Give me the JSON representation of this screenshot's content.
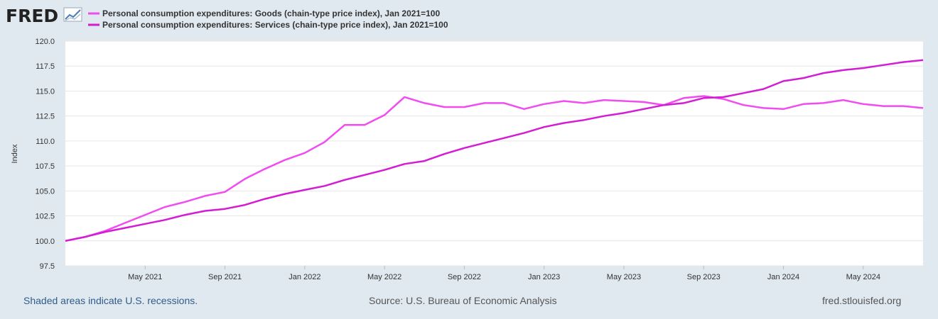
{
  "header": {
    "logo_text": "FRED"
  },
  "chart_data": {
    "type": "line",
    "title": "",
    "xlabel": "",
    "ylabel": "Index",
    "ylim": [
      97.5,
      120.0
    ],
    "y_ticks": [
      "120.0",
      "117.5",
      "115.0",
      "112.5",
      "110.0",
      "107.5",
      "105.0",
      "102.5",
      "100.0",
      "97.5"
    ],
    "x_tick_labels": [
      "May 2021",
      "Sep 2021",
      "Jan 2022",
      "May 2022",
      "Sep 2022",
      "Jan 2023",
      "May 2023",
      "Sep 2023",
      "Jan 2024",
      "May 2024"
    ],
    "x_tick_month_index": [
      4,
      8,
      12,
      16,
      20,
      24,
      28,
      32,
      36,
      40
    ],
    "x_range_months": [
      0,
      43
    ],
    "series": [
      {
        "name": "Personal consumption expenditures: Goods (chain-type price index), Jan 2021=100",
        "color": "#f04cf0",
        "values": [
          100.0,
          100.4,
          101.0,
          101.8,
          102.6,
          103.4,
          103.9,
          104.5,
          104.9,
          106.2,
          107.2,
          108.1,
          108.8,
          109.9,
          111.6,
          111.6,
          112.6,
          114.4,
          113.8,
          113.4,
          113.4,
          113.8,
          113.8,
          113.2,
          113.7,
          114.0,
          113.8,
          114.1,
          114.0,
          113.9,
          113.6,
          114.3,
          114.5,
          114.2,
          113.6,
          113.3,
          113.2,
          113.7,
          113.8,
          114.1,
          113.7,
          113.5,
          113.5,
          113.3
        ]
      },
      {
        "name": "Personal consumption expenditures: Services (chain-type price index), Jan 2021=100",
        "color": "#d41cd4",
        "values": [
          100.0,
          100.4,
          100.9,
          101.3,
          101.7,
          102.1,
          102.6,
          103.0,
          103.2,
          103.6,
          104.2,
          104.7,
          105.1,
          105.5,
          106.1,
          106.6,
          107.1,
          107.7,
          108.0,
          108.7,
          109.3,
          109.8,
          110.3,
          110.8,
          111.4,
          111.8,
          112.1,
          112.5,
          112.8,
          113.2,
          113.6,
          113.8,
          114.3,
          114.4,
          114.8,
          115.2,
          116.0,
          116.3,
          116.8,
          117.1,
          117.3,
          117.6,
          117.9,
          118.1
        ]
      }
    ]
  },
  "footer": {
    "note": "Shaded areas indicate U.S. recessions.",
    "source": "Source: U.S. Bureau of Economic Analysis",
    "site": "fred.stlouisfed.org"
  }
}
